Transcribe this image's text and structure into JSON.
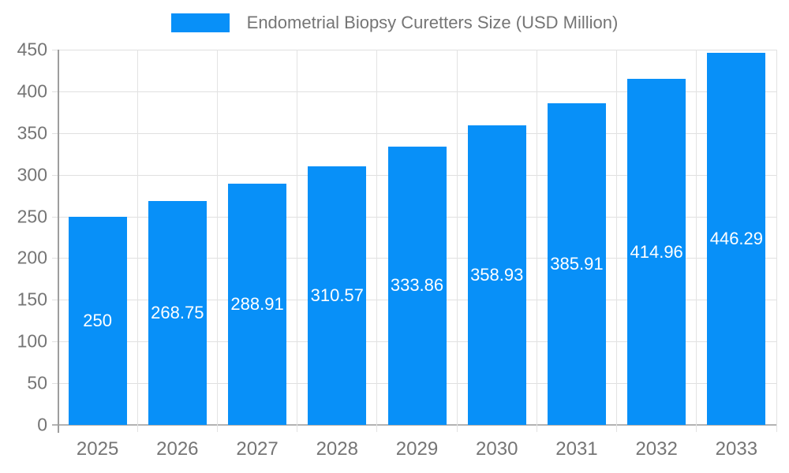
{
  "legend": {
    "label": "Endometrial Biopsy Curetters Size (USD Million)"
  },
  "colors": {
    "bar": "#0890f8",
    "axis_text": "#757575",
    "grid": "#e0e0e0",
    "axis_line": "#9e9e9e",
    "baseline": "#b3b3b3",
    "bar_label_text": "#ffffff"
  },
  "chart_data": {
    "type": "bar",
    "title": "Endometrial Biopsy Curetters Size (USD Million)",
    "categories": [
      "2025",
      "2026",
      "2027",
      "2028",
      "2029",
      "2030",
      "2031",
      "2032",
      "2033"
    ],
    "values": [
      250,
      268.75,
      288.91,
      310.57,
      333.86,
      358.93,
      385.91,
      414.96,
      446.29
    ],
    "value_labels": [
      "250",
      "268.75",
      "288.91",
      "310.57",
      "333.86",
      "358.93",
      "385.91",
      "414.96",
      "446.29"
    ],
    "xlabel": "",
    "ylabel": "",
    "ylim": [
      0,
      450
    ],
    "yticks": [
      0,
      50,
      100,
      150,
      200,
      250,
      300,
      350,
      400,
      450
    ],
    "grid": true,
    "legend_position": "top-center",
    "series_color": "#0890f8"
  }
}
